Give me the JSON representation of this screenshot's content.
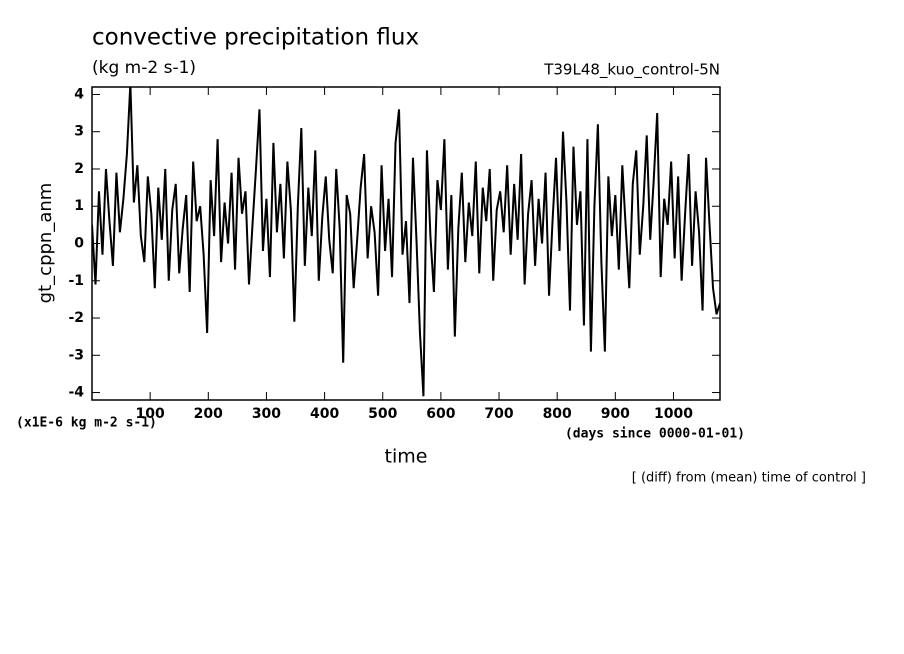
{
  "chart_data": {
    "type": "line",
    "title": "convective precipitation flux",
    "subtitle": "(kg m-2 s-1)",
    "run_label": "T39L48_kuo_control-5N",
    "y_label": "gt_cppn_anm",
    "y_unit": "(x1E-6 kg m-2 s-1)",
    "x_unit": "(days since 0000-01-01)",
    "x_label": "time",
    "note": "[ (diff) from (mean) time of control ]",
    "xlim": [
      0,
      1080
    ],
    "ylim": [
      -4.2,
      4.2
    ],
    "xticks": [
      100,
      200,
      300,
      400,
      500,
      600,
      700,
      800,
      900,
      1000
    ],
    "yticks": [
      -4,
      -3,
      -2,
      -1,
      0,
      1,
      2,
      3,
      4
    ],
    "color": "#000000",
    "x": [
      0,
      6,
      12,
      18,
      24,
      30,
      36,
      42,
      48,
      54,
      60,
      66,
      72,
      78,
      84,
      90,
      96,
      102,
      108,
      114,
      120,
      126,
      132,
      138,
      144,
      150,
      156,
      162,
      168,
      174,
      180,
      186,
      192,
      198,
      204,
      210,
      216,
      222,
      228,
      234,
      240,
      246,
      252,
      258,
      264,
      270,
      276,
      282,
      288,
      294,
      300,
      306,
      312,
      318,
      324,
      330,
      336,
      342,
      348,
      354,
      360,
      366,
      372,
      378,
      384,
      390,
      396,
      402,
      408,
      414,
      420,
      426,
      432,
      438,
      444,
      450,
      456,
      462,
      468,
      474,
      480,
      486,
      492,
      498,
      504,
      510,
      516,
      522,
      528,
      534,
      540,
      546,
      552,
      558,
      564,
      570,
      576,
      582,
      588,
      594,
      600,
      606,
      612,
      618,
      624,
      630,
      636,
      642,
      648,
      654,
      660,
      666,
      672,
      678,
      684,
      690,
      696,
      702,
      708,
      714,
      720,
      726,
      732,
      738,
      744,
      750,
      756,
      762,
      768,
      774,
      780,
      786,
      792,
      798,
      804,
      810,
      816,
      822,
      828,
      834,
      840,
      846,
      852,
      858,
      864,
      870,
      876,
      882,
      888,
      894,
      900,
      906,
      912,
      918,
      924,
      930,
      936,
      942,
      948,
      954,
      960,
      966,
      972,
      978,
      984,
      990,
      996,
      1002,
      1008,
      1014,
      1020,
      1026,
      1032,
      1038,
      1044,
      1050,
      1056,
      1062,
      1068,
      1074,
      1080
    ],
    "values": [
      0.5,
      -1.1,
      1.4,
      -0.3,
      2.0,
      0.6,
      -0.6,
      1.9,
      0.3,
      1.2,
      2.4,
      4.3,
      1.1,
      2.1,
      0.2,
      -0.5,
      1.8,
      0.8,
      -1.2,
      1.5,
      0.1,
      2.0,
      -1.0,
      0.9,
      1.6,
      -0.8,
      0.4,
      1.3,
      -1.3,
      2.2,
      0.6,
      1.0,
      -0.3,
      -2.4,
      1.7,
      0.2,
      2.8,
      -0.5,
      1.1,
      0.0,
      1.9,
      -0.7,
      2.3,
      0.8,
      1.4,
      -1.1,
      0.5,
      2.0,
      3.6,
      -0.2,
      1.2,
      -0.9,
      2.7,
      0.3,
      1.6,
      -0.4,
      2.2,
      0.9,
      -2.1,
      1.0,
      3.1,
      -0.6,
      1.5,
      0.2,
      2.5,
      -1.0,
      0.7,
      1.8,
      0.1,
      -0.8,
      2.0,
      0.4,
      -3.2,
      1.3,
      0.8,
      -1.2,
      0.1,
      1.5,
      2.4,
      -0.4,
      1.0,
      0.3,
      -1.4,
      2.1,
      -0.2,
      1.2,
      -0.9,
      2.7,
      3.6,
      -0.3,
      0.6,
      -1.6,
      2.3,
      0.1,
      -2.4,
      -4.1,
      2.5,
      0.2,
      -1.3,
      1.7,
      0.9,
      2.8,
      -0.7,
      1.3,
      -2.5,
      0.4,
      1.9,
      -0.5,
      1.1,
      0.2,
      2.2,
      -0.8,
      1.5,
      0.6,
      2.0,
      -1.0,
      0.9,
      1.4,
      0.3,
      2.1,
      -0.3,
      1.6,
      0.1,
      2.4,
      -1.1,
      0.8,
      1.7,
      -0.6,
      1.2,
      0.0,
      1.9,
      -1.4,
      0.6,
      2.3,
      -0.2,
      3.0,
      1.1,
      -1.8,
      2.6,
      0.5,
      1.4,
      -2.2,
      2.8,
      -2.9,
      1.0,
      3.2,
      -0.5,
      -2.9,
      1.8,
      0.2,
      1.3,
      -0.7,
      2.1,
      0.4,
      -1.2,
      1.6,
      2.5,
      -0.3,
      1.0,
      2.9,
      0.1,
      1.7,
      3.5,
      -0.9,
      1.2,
      0.5,
      2.2,
      -0.4,
      1.8,
      -1.0,
      0.8,
      2.4,
      -0.6,
      1.4,
      0.3,
      -1.8,
      2.3,
      0.5,
      -1.2,
      -1.9,
      -1.6
    ]
  }
}
